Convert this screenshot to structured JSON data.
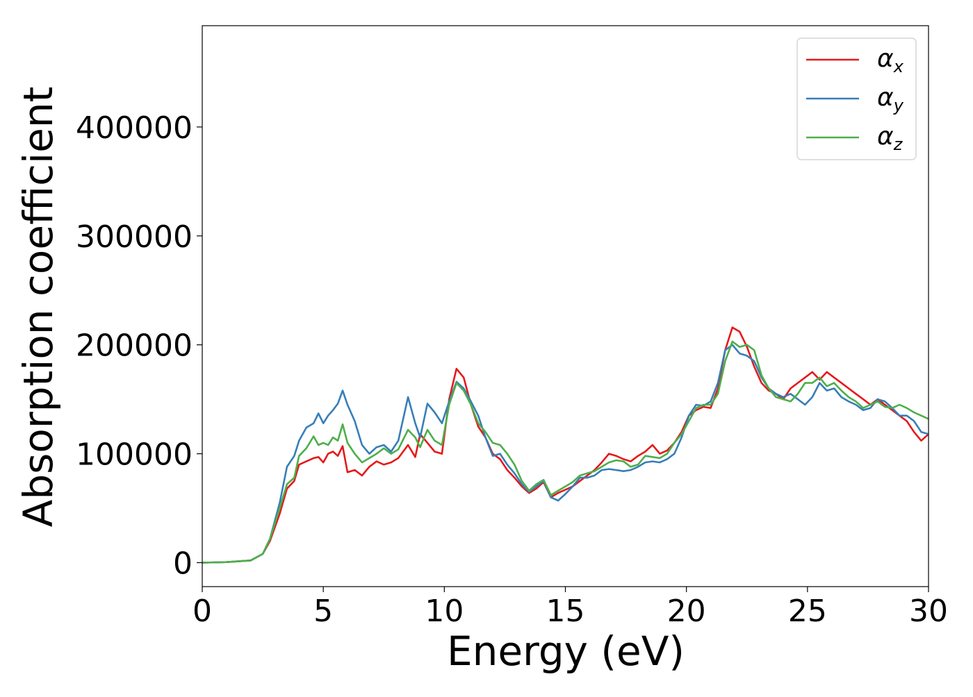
{
  "chart_data": {
    "type": "line",
    "title": "",
    "xlabel": "Energy (eV)",
    "ylabel": "Absorption coefficient",
    "xlim": [
      0,
      30
    ],
    "ylim": [
      -22000,
      493000
    ],
    "x_ticks": [
      0,
      5,
      10,
      15,
      20,
      25,
      30
    ],
    "y_ticks": [
      0,
      100000,
      200000,
      300000,
      400000
    ],
    "grid": false,
    "legend_position": "top-right",
    "colors": {
      "alpha_x": "#e41a1c",
      "alpha_y": "#377eb8",
      "alpha_z": "#4daf4a"
    },
    "legend": [
      {
        "key": "alpha_x",
        "base": "α",
        "sub": "x"
      },
      {
        "key": "alpha_y",
        "base": "α",
        "sub": "y"
      },
      {
        "key": "alpha_z",
        "base": "α",
        "sub": "z"
      }
    ],
    "series": [
      {
        "key": "alpha_x",
        "name": "αx",
        "color": "#e41a1c",
        "x": [
          0,
          1,
          2,
          2.5,
          2.8,
          3.2,
          3.5,
          3.8,
          4.0,
          4.3,
          4.6,
          4.8,
          5.0,
          5.2,
          5.4,
          5.6,
          5.8,
          6.0,
          6.3,
          6.6,
          6.9,
          7.2,
          7.5,
          7.8,
          8.1,
          8.5,
          8.8,
          9.0,
          9.3,
          9.6,
          9.9,
          10.2,
          10.5,
          10.8,
          11.1,
          11.4,
          11.7,
          12.0,
          12.3,
          12.6,
          12.9,
          13.2,
          13.5,
          13.8,
          14.1,
          14.4,
          14.7,
          15.0,
          15.3,
          15.6,
          15.9,
          16.2,
          16.5,
          16.8,
          17.1,
          17.4,
          17.7,
          18.0,
          18.3,
          18.6,
          18.9,
          19.2,
          19.5,
          19.8,
          20.1,
          20.4,
          20.7,
          21.0,
          21.3,
          21.6,
          21.9,
          22.2,
          22.5,
          22.8,
          23.1,
          23.4,
          23.7,
          24.0,
          24.3,
          24.6,
          24.9,
          25.2,
          25.5,
          25.8,
          26.1,
          26.4,
          26.7,
          27.0,
          27.3,
          27.6,
          27.9,
          28.2,
          28.5,
          28.8,
          29.1,
          29.4,
          29.7,
          30.0
        ],
        "y": [
          0,
          500,
          2000,
          8000,
          20000,
          45000,
          68000,
          75000,
          90000,
          93000,
          96000,
          97000,
          92000,
          100000,
          102000,
          98000,
          107000,
          83000,
          85000,
          80000,
          88000,
          93000,
          90000,
          92000,
          96000,
          108000,
          97000,
          118000,
          110000,
          102000,
          100000,
          150000,
          178000,
          170000,
          145000,
          125000,
          115000,
          100000,
          95000,
          85000,
          78000,
          70000,
          64000,
          68000,
          74000,
          60000,
          64000,
          67000,
          70000,
          75000,
          80000,
          85000,
          92000,
          100000,
          98000,
          95000,
          93000,
          98000,
          102000,
          108000,
          100000,
          103000,
          110000,
          120000,
          135000,
          140000,
          143000,
          142000,
          160000,
          195000,
          216000,
          212000,
          198000,
          180000,
          165000,
          158000,
          155000,
          150000,
          160000,
          165000,
          170000,
          175000,
          168000,
          175000,
          170000,
          165000,
          160000,
          155000,
          150000,
          145000,
          150000,
          145000,
          140000,
          135000,
          130000,
          120000,
          112000,
          118000
        ]
      },
      {
        "key": "alpha_y",
        "name": "αy",
        "color": "#377eb8",
        "x": [
          0,
          1,
          2,
          2.5,
          2.8,
          3.2,
          3.5,
          3.8,
          4.0,
          4.3,
          4.6,
          4.8,
          5.0,
          5.2,
          5.4,
          5.6,
          5.8,
          6.0,
          6.3,
          6.6,
          6.9,
          7.2,
          7.5,
          7.8,
          8.1,
          8.5,
          8.8,
          9.0,
          9.3,
          9.6,
          9.9,
          10.2,
          10.5,
          10.8,
          11.1,
          11.4,
          11.7,
          12.0,
          12.3,
          12.6,
          12.9,
          13.2,
          13.5,
          13.8,
          14.1,
          14.4,
          14.7,
          15.0,
          15.3,
          15.6,
          15.9,
          16.2,
          16.5,
          16.8,
          17.1,
          17.4,
          17.7,
          18.0,
          18.3,
          18.6,
          18.9,
          19.2,
          19.5,
          19.8,
          20.1,
          20.4,
          20.7,
          21.0,
          21.3,
          21.6,
          21.9,
          22.2,
          22.5,
          22.8,
          23.1,
          23.4,
          23.7,
          24.0,
          24.3,
          24.6,
          24.9,
          25.2,
          25.5,
          25.8,
          26.1,
          26.4,
          26.7,
          27.0,
          27.3,
          27.6,
          27.9,
          28.2,
          28.5,
          28.8,
          29.1,
          29.4,
          29.7,
          30.0
        ],
        "y": [
          0,
          500,
          2000,
          8000,
          22000,
          55000,
          88000,
          98000,
          112000,
          124000,
          128000,
          137000,
          128000,
          135000,
          140000,
          146000,
          158000,
          145000,
          130000,
          108000,
          100000,
          106000,
          108000,
          102000,
          112000,
          152000,
          128000,
          115000,
          146000,
          138000,
          128000,
          148000,
          166000,
          160000,
          148000,
          135000,
          115000,
          98000,
          100000,
          90000,
          82000,
          72000,
          65000,
          70000,
          75000,
          60000,
          57000,
          63000,
          70000,
          78000,
          78000,
          80000,
          85000,
          86000,
          85000,
          84000,
          85000,
          88000,
          92000,
          93000,
          92000,
          95000,
          100000,
          115000,
          135000,
          145000,
          144000,
          148000,
          165000,
          195000,
          200000,
          192000,
          190000,
          185000,
          170000,
          160000,
          155000,
          152000,
          155000,
          150000,
          145000,
          152000,
          165000,
          158000,
          160000,
          152000,
          148000,
          145000,
          140000,
          142000,
          150000,
          148000,
          142000,
          135000,
          135000,
          130000,
          120000,
          118000
        ]
      },
      {
        "key": "alpha_z",
        "name": "αz",
        "color": "#4daf4a",
        "x": [
          0,
          1,
          2,
          2.5,
          2.8,
          3.2,
          3.5,
          3.8,
          4.0,
          4.3,
          4.6,
          4.8,
          5.0,
          5.2,
          5.4,
          5.6,
          5.8,
          6.0,
          6.3,
          6.6,
          6.9,
          7.2,
          7.5,
          7.8,
          8.1,
          8.5,
          8.8,
          9.0,
          9.3,
          9.6,
          9.9,
          10.2,
          10.5,
          10.8,
          11.1,
          11.4,
          11.7,
          12.0,
          12.3,
          12.6,
          12.9,
          13.2,
          13.5,
          13.8,
          14.1,
          14.4,
          14.7,
          15.0,
          15.3,
          15.6,
          15.9,
          16.2,
          16.5,
          16.8,
          17.1,
          17.4,
          17.7,
          18.0,
          18.3,
          18.6,
          18.9,
          19.2,
          19.5,
          19.8,
          20.1,
          20.4,
          20.7,
          21.0,
          21.3,
          21.6,
          21.9,
          22.2,
          22.5,
          22.8,
          23.1,
          23.4,
          23.7,
          24.0,
          24.3,
          24.6,
          24.9,
          25.2,
          25.5,
          25.8,
          26.1,
          26.4,
          26.7,
          27.0,
          27.3,
          27.6,
          27.9,
          28.2,
          28.5,
          28.8,
          29.1,
          29.4,
          29.7,
          30.0
        ],
        "y": [
          0,
          500,
          2000,
          8000,
          22000,
          50000,
          72000,
          78000,
          98000,
          105000,
          116000,
          108000,
          110000,
          108000,
          115000,
          112000,
          127000,
          110000,
          100000,
          92000,
          96000,
          100000,
          105000,
          100000,
          104000,
          122000,
          115000,
          106000,
          122000,
          112000,
          108000,
          145000,
          165000,
          158000,
          145000,
          128000,
          120000,
          110000,
          108000,
          100000,
          90000,
          75000,
          66000,
          72000,
          76000,
          62000,
          66000,
          70000,
          74000,
          80000,
          82000,
          84000,
          88000,
          92000,
          94000,
          93000,
          88000,
          90000,
          98000,
          97000,
          96000,
          100000,
          110000,
          118000,
          130000,
          142000,
          145000,
          145000,
          155000,
          185000,
          203000,
          198000,
          200000,
          195000,
          172000,
          160000,
          152000,
          150000,
          148000,
          155000,
          165000,
          165000,
          170000,
          162000,
          165000,
          158000,
          152000,
          148000,
          142000,
          145000,
          148000,
          143000,
          142000,
          145000,
          142000,
          138000,
          135000,
          132000
        ]
      }
    ]
  }
}
